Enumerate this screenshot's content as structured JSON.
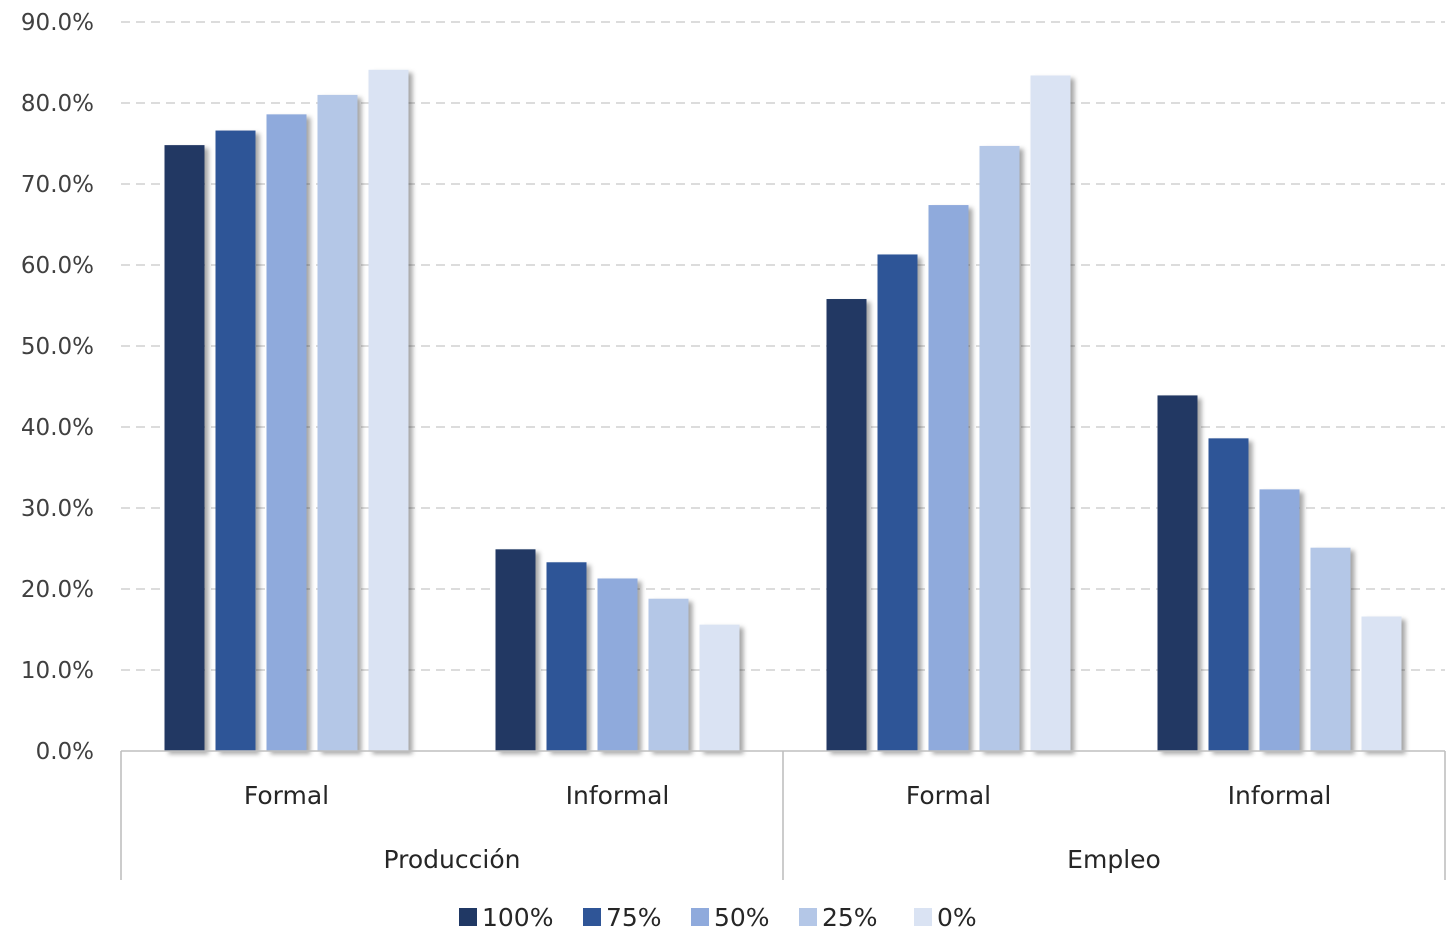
{
  "chart_data": {
    "type": "bar",
    "title": "",
    "xlabel": "",
    "ylabel": "",
    "ylim": [
      0,
      90
    ],
    "ytick_step": 10,
    "ytick_format": "0.0%",
    "grid": true,
    "grid_style": "dashed",
    "legend_position": "bottom-center",
    "groups": [
      {
        "label": "Producción",
        "categories": [
          "Formal",
          "Informal"
        ]
      },
      {
        "label": "Empleo",
        "categories": [
          "Formal",
          "Informal"
        ]
      }
    ],
    "categories": [
      "Formal",
      "Informal",
      "Formal",
      "Informal"
    ],
    "series": [
      {
        "name": "100%",
        "color": "#203864",
        "values": [
          74.8,
          24.9,
          55.8,
          43.9
        ]
      },
      {
        "name": "75%",
        "color": "#2F5597",
        "values": [
          76.6,
          23.3,
          61.3,
          38.6
        ]
      },
      {
        "name": "50%",
        "color": "#8FAADC",
        "values": [
          78.6,
          21.3,
          67.4,
          32.3
        ]
      },
      {
        "name": "25%",
        "color": "#B4C7E7",
        "values": [
          81.0,
          18.8,
          74.7,
          25.1
        ]
      },
      {
        "name": "0%",
        "color": "#DAE3F3",
        "values": [
          84.1,
          15.6,
          83.4,
          16.6
        ]
      }
    ]
  }
}
